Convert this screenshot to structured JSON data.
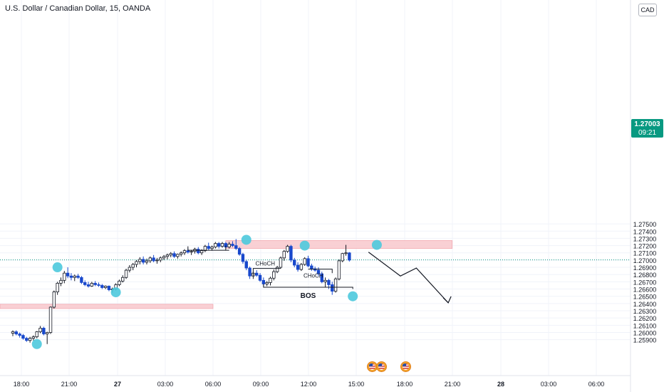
{
  "header": {
    "symbol_title": "U.S. Dollar / Canadian Dollar, 15, OANDA"
  },
  "scale_button": {
    "label": "CAD"
  },
  "price_tag": {
    "price": "1.27003",
    "countdown": "09:21"
  },
  "colors": {
    "bull_body": "#ffffff",
    "bull_border": "#131722",
    "bear_body": "#1848cc",
    "zone": "#f8c8cc",
    "marker": "#4cc9dd",
    "current_price": "#089981"
  },
  "icons": {
    "event_flags": [
      "us-flag-icon",
      "us-flag-icon",
      "us-flag-icon"
    ]
  },
  "chart_data": {
    "type": "candlestick",
    "title": "U.S. Dollar / Canadian Dollar, 15, OANDA",
    "ylim": [
      1.2582,
      1.2786
    ],
    "y_ticks": [
      "1.27500",
      "1.27400",
      "1.27300",
      "1.27200",
      "1.27100",
      "1.27000",
      "1.26900",
      "1.26800",
      "1.26700",
      "1.26600",
      "1.26500",
      "1.26400",
      "1.26300",
      "1.26200",
      "1.26100",
      "1.26000",
      "1.25900"
    ],
    "x_ticks": [
      "18:00",
      "21:00",
      "27",
      "03:00",
      "06:00",
      "09:00",
      "12:00",
      "15:00",
      "18:00",
      "21:00",
      "28",
      "03:00",
      "06:00"
    ],
    "current_price": 1.27003,
    "candles_ohlc": [
      [
        1.2599,
        1.2603,
        1.2595,
        1.2601
      ],
      [
        1.2601,
        1.2603,
        1.2596,
        1.2598
      ],
      [
        1.2598,
        1.26,
        1.2593,
        1.2596
      ],
      [
        1.2596,
        1.2598,
        1.259,
        1.2592
      ],
      [
        1.2592,
        1.2594,
        1.2587,
        1.2589
      ],
      [
        1.2589,
        1.2594,
        1.2586,
        1.2592
      ],
      [
        1.2592,
        1.2596,
        1.2589,
        1.2594
      ],
      [
        1.2594,
        1.2602,
        1.2592,
        1.2601
      ],
      [
        1.2601,
        1.2609,
        1.2599,
        1.2606
      ],
      [
        1.2606,
        1.2608,
        1.2596,
        1.2598
      ],
      [
        1.2598,
        1.2601,
        1.2584,
        1.26
      ],
      [
        1.26,
        1.2636,
        1.2598,
        1.2635
      ],
      [
        1.2635,
        1.2658,
        1.2633,
        1.2656
      ],
      [
        1.2656,
        1.267,
        1.2652,
        1.2668
      ],
      [
        1.2668,
        1.2676,
        1.2664,
        1.2672
      ],
      [
        1.2672,
        1.2685,
        1.2668,
        1.2682
      ],
      [
        1.2682,
        1.269,
        1.2675,
        1.2678
      ],
      [
        1.2678,
        1.2682,
        1.2672,
        1.2676
      ],
      [
        1.2676,
        1.268,
        1.2671,
        1.2678
      ],
      [
        1.2678,
        1.2681,
        1.2674,
        1.2676
      ],
      [
        1.2676,
        1.2678,
        1.2667,
        1.2669
      ],
      [
        1.2669,
        1.2672,
        1.2664,
        1.2666
      ],
      [
        1.2666,
        1.267,
        1.2662,
        1.2664
      ],
      [
        1.2664,
        1.267,
        1.2663,
        1.2668
      ],
      [
        1.2668,
        1.2671,
        1.2664,
        1.2666
      ],
      [
        1.2666,
        1.2669,
        1.2663,
        1.2665
      ],
      [
        1.2665,
        1.2667,
        1.266,
        1.2662
      ],
      [
        1.2662,
        1.2665,
        1.266,
        1.2664
      ],
      [
        1.2664,
        1.2665,
        1.2657,
        1.2659
      ],
      [
        1.2659,
        1.2662,
        1.2655,
        1.266
      ],
      [
        1.266,
        1.2668,
        1.2658,
        1.2666
      ],
      [
        1.2666,
        1.2673,
        1.2664,
        1.2671
      ],
      [
        1.2671,
        1.2679,
        1.2669,
        1.2676
      ],
      [
        1.2676,
        1.2688,
        1.2674,
        1.2686
      ],
      [
        1.2686,
        1.2693,
        1.2683,
        1.269
      ],
      [
        1.269,
        1.2696,
        1.2686,
        1.2694
      ],
      [
        1.2694,
        1.27,
        1.269,
        1.2698
      ],
      [
        1.2698,
        1.2704,
        1.2694,
        1.2701
      ],
      [
        1.2701,
        1.2705,
        1.2694,
        1.2697
      ],
      [
        1.2697,
        1.2702,
        1.2694,
        1.2699
      ],
      [
        1.2699,
        1.2705,
        1.2696,
        1.2703
      ],
      [
        1.2703,
        1.2707,
        1.2697,
        1.2699
      ],
      [
        1.2699,
        1.2703,
        1.2695,
        1.27
      ],
      [
        1.27,
        1.2705,
        1.2697,
        1.2703
      ],
      [
        1.2703,
        1.2707,
        1.27,
        1.2705
      ],
      [
        1.2705,
        1.2709,
        1.2701,
        1.2707
      ],
      [
        1.2707,
        1.2711,
        1.2704,
        1.2709
      ],
      [
        1.2709,
        1.2712,
        1.2703,
        1.2705
      ],
      [
        1.2705,
        1.2709,
        1.2702,
        1.2708
      ],
      [
        1.2708,
        1.2712,
        1.2705,
        1.271
      ],
      [
        1.271,
        1.2715,
        1.2707,
        1.2713
      ],
      [
        1.2713,
        1.2716,
        1.2709,
        1.2711
      ],
      [
        1.2711,
        1.2714,
        1.2707,
        1.2712
      ],
      [
        1.2712,
        1.2717,
        1.2709,
        1.2715
      ],
      [
        1.2715,
        1.2718,
        1.2708,
        1.271
      ],
      [
        1.271,
        1.2715,
        1.2707,
        1.2713
      ],
      [
        1.2713,
        1.2721,
        1.2711,
        1.2719
      ],
      [
        1.2719,
        1.2724,
        1.2714,
        1.2716
      ],
      [
        1.2716,
        1.272,
        1.2713,
        1.2718
      ],
      [
        1.2718,
        1.2725,
        1.2716,
        1.2723
      ],
      [
        1.2723,
        1.2725,
        1.2716,
        1.2719
      ],
      [
        1.2719,
        1.2725,
        1.2717,
        1.2723
      ],
      [
        1.2723,
        1.2725,
        1.2716,
        1.2718
      ],
      [
        1.2718,
        1.2725,
        1.2716,
        1.2722
      ],
      [
        1.2722,
        1.2726,
        1.2718,
        1.272
      ],
      [
        1.272,
        1.2729,
        1.2714,
        1.2716
      ],
      [
        1.2716,
        1.2718,
        1.2706,
        1.2708
      ],
      [
        1.2708,
        1.271,
        1.2695,
        1.2698
      ],
      [
        1.2698,
        1.27,
        1.2686,
        1.2689
      ],
      [
        1.2689,
        1.2691,
        1.2674,
        1.2678
      ],
      [
        1.2678,
        1.2684,
        1.2674,
        1.2682
      ],
      [
        1.2682,
        1.2686,
        1.2677,
        1.2679
      ],
      [
        1.2679,
        1.2682,
        1.267,
        1.2672
      ],
      [
        1.2672,
        1.2676,
        1.2664,
        1.2667
      ],
      [
        1.2667,
        1.2671,
        1.2664,
        1.2669
      ],
      [
        1.2669,
        1.2677,
        1.2665,
        1.2675
      ],
      [
        1.2675,
        1.2687,
        1.2672,
        1.2684
      ],
      [
        1.2684,
        1.2692,
        1.2682,
        1.269
      ],
      [
        1.269,
        1.2705,
        1.2688,
        1.2703
      ],
      [
        1.2703,
        1.2714,
        1.2699,
        1.2712
      ],
      [
        1.2712,
        1.2721,
        1.271,
        1.2719
      ],
      [
        1.2719,
        1.2721,
        1.2697,
        1.27
      ],
      [
        1.27,
        1.2703,
        1.269,
        1.2693
      ],
      [
        1.2693,
        1.2697,
        1.2684,
        1.2687
      ],
      [
        1.2687,
        1.2696,
        1.2685,
        1.2694
      ],
      [
        1.2694,
        1.2704,
        1.2692,
        1.2702
      ],
      [
        1.2702,
        1.2706,
        1.269,
        1.2692
      ],
      [
        1.2692,
        1.2695,
        1.2685,
        1.2688
      ],
      [
        1.2688,
        1.2691,
        1.2684,
        1.2686
      ],
      [
        1.2686,
        1.269,
        1.2678,
        1.2681
      ],
      [
        1.2681,
        1.2684,
        1.2668,
        1.267
      ],
      [
        1.267,
        1.2676,
        1.2663,
        1.2672
      ],
      [
        1.2672,
        1.2674,
        1.266,
        1.2666
      ],
      [
        1.2666,
        1.267,
        1.2652,
        1.2657
      ],
      [
        1.2657,
        1.2676,
        1.2655,
        1.2674
      ],
      [
        1.2674,
        1.2701,
        1.2672,
        1.2699
      ],
      [
        1.2699,
        1.271,
        1.2697,
        1.2709
      ],
      [
        1.2709,
        1.2721,
        1.2706,
        1.271
      ],
      [
        1.271,
        1.2711,
        1.2698,
        1.27
      ]
    ],
    "zones": [
      {
        "from_index": 62,
        "to": "21:00",
        "high": 1.2727,
        "low": 1.2716
      },
      {
        "from": "start",
        "to": "06:00",
        "high": 1.2639,
        "low": 1.2633
      }
    ],
    "annotations": [
      {
        "text": "CHoCH",
        "level": 1.26885
      },
      {
        "text": "CHoCH",
        "level": 1.26875
      },
      {
        "text": "BOS",
        "level": 1.26625
      }
    ],
    "projection_path": [
      [
        "15:45",
        1.2711
      ],
      [
        "17:45",
        1.2678
      ],
      [
        "18:45",
        1.2689
      ],
      [
        "20:45",
        1.2641
      ]
    ]
  }
}
